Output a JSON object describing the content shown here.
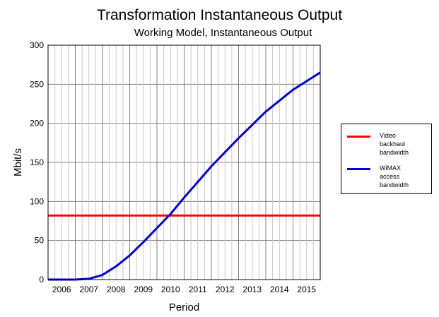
{
  "chart_data": {
    "type": "line",
    "title": "Transformation Instantaneous Output",
    "subtitle": "Working Model, Instantaneous Output",
    "xlabel": "Period",
    "ylabel": "Mbit/s",
    "xlim": [
      2005.5,
      2015.5
    ],
    "ylim": [
      0,
      300
    ],
    "yticks": [
      0,
      50,
      100,
      150,
      200,
      250,
      300
    ],
    "xtick_labels": [
      "2006",
      "2007",
      "2008",
      "2009",
      "2010",
      "2011",
      "2012",
      "2013",
      "2014",
      "2015"
    ],
    "grid": true,
    "legend_position": "right",
    "series": [
      {
        "name": "Video backhaul bandwidth",
        "color": "#ff0000",
        "x": [
          2005.5,
          2015.5
        ],
        "y": [
          82,
          82
        ]
      },
      {
        "name": "WiMAX access bandwidth",
        "color": "#0000dd",
        "x": [
          2005.5,
          2006.5,
          2007.0,
          2007.5,
          2008.0,
          2008.5,
          2009.0,
          2009.5,
          2010.0,
          2010.5,
          2011.0,
          2011.5,
          2012.0,
          2012.5,
          2013.0,
          2013.5,
          2014.0,
          2014.5,
          2015.0,
          2015.5
        ],
        "y": [
          0,
          0,
          1,
          6,
          17,
          31,
          48,
          66,
          84,
          105,
          125,
          145,
          163,
          181,
          198,
          215,
          229,
          243,
          254,
          265
        ]
      }
    ]
  }
}
